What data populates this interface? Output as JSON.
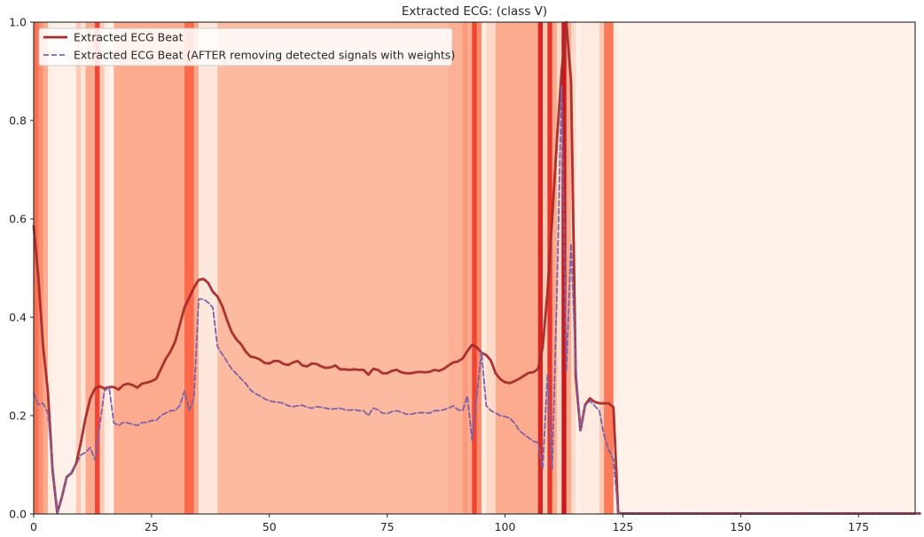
{
  "chart_data": {
    "type": "line",
    "title": "Extracted ECG: (class V)",
    "xlabel": "",
    "ylabel": "",
    "xlim": [
      0,
      187
    ],
    "ylim": [
      0,
      1.0
    ],
    "x_ticks": [
      0,
      25,
      50,
      75,
      100,
      125,
      150,
      175
    ],
    "y_ticks": [
      0.0,
      0.2,
      0.4,
      0.6,
      0.8,
      1.0
    ],
    "x_tick_labels": [
      "0",
      "25",
      "50",
      "75",
      "100",
      "125",
      "150",
      "175"
    ],
    "y_tick_labels": [
      "0.0",
      "0.2",
      "0.4",
      "0.6",
      "0.8",
      "1.0"
    ],
    "grid": false,
    "legend_position": "top-left",
    "series": [
      {
        "name": "Extracted ECG Beat",
        "color": "#a52a2a",
        "style": "solid",
        "values": [
          0.585,
          0.48,
          0.34,
          0.25,
          0.09,
          0.002,
          0.035,
          0.075,
          0.083,
          0.102,
          0.145,
          0.195,
          0.235,
          0.255,
          0.26,
          0.255,
          0.258,
          0.258,
          0.253,
          0.262,
          0.265,
          0.262,
          0.257,
          0.265,
          0.267,
          0.27,
          0.275,
          0.295,
          0.315,
          0.33,
          0.35,
          0.385,
          0.42,
          0.44,
          0.46,
          0.476,
          0.478,
          0.47,
          0.452,
          0.442,
          0.423,
          0.395,
          0.37,
          0.355,
          0.345,
          0.33,
          0.32,
          0.318,
          0.314,
          0.307,
          0.306,
          0.311,
          0.311,
          0.305,
          0.303,
          0.308,
          0.311,
          0.302,
          0.3,
          0.306,
          0.305,
          0.3,
          0.297,
          0.298,
          0.302,
          0.294,
          0.294,
          0.293,
          0.294,
          0.293,
          0.293,
          0.283,
          0.295,
          0.293,
          0.286,
          0.286,
          0.291,
          0.293,
          0.288,
          0.286,
          0.286,
          0.288,
          0.289,
          0.288,
          0.289,
          0.293,
          0.291,
          0.295,
          0.302,
          0.308,
          0.31,
          0.316,
          0.331,
          0.344,
          0.339,
          0.328,
          0.323,
          0.312,
          0.286,
          0.274,
          0.268,
          0.266,
          0.27,
          0.275,
          0.281,
          0.287,
          0.288,
          0.295,
          0.34,
          0.45,
          0.6,
          0.76,
          0.9,
          1.0,
          0.88,
          0.28,
          0.17,
          0.222,
          0.235,
          0.228,
          0.225,
          0.225,
          0.225,
          0.217,
          0.002,
          0.001,
          0.001,
          0.001,
          0.001,
          0.001,
          0.001,
          0.001,
          0.001,
          0.001,
          0.001,
          0.001,
          0.001,
          0.001,
          0.001,
          0.001,
          0.001,
          0.001,
          0.001,
          0.001,
          0.001,
          0.001,
          0.001,
          0.001,
          0.001,
          0.001,
          0.001,
          0.001,
          0.001,
          0.001,
          0.001,
          0.001,
          0.001,
          0.001,
          0.001,
          0.001,
          0.001,
          0.001,
          0.001,
          0.001,
          0.001,
          0.001,
          0.001,
          0.001,
          0.001,
          0.001,
          0.001,
          0.001,
          0.001,
          0.001,
          0.001,
          0.001,
          0.001,
          0.001,
          0.001,
          0.001,
          0.001,
          0.001,
          0.001,
          0.001,
          0.001,
          0.001,
          0.001,
          0.001,
          0.001
        ]
      },
      {
        "name": "Extracted ECG Beat (AFTER removing detected signals with weights)",
        "color": "#7b62a8",
        "style": "dashed",
        "values": [
          0.245,
          0.222,
          0.225,
          0.205,
          0.1,
          0.002,
          0.035,
          0.075,
          0.085,
          0.1,
          0.12,
          0.125,
          0.135,
          0.11,
          0.18,
          0.25,
          0.258,
          0.185,
          0.18,
          0.186,
          0.185,
          0.182,
          0.18,
          0.186,
          0.186,
          0.19,
          0.19,
          0.2,
          0.205,
          0.21,
          0.21,
          0.22,
          0.25,
          0.21,
          0.235,
          0.437,
          0.437,
          0.43,
          0.42,
          0.34,
          0.325,
          0.31,
          0.295,
          0.285,
          0.275,
          0.265,
          0.252,
          0.245,
          0.24,
          0.234,
          0.23,
          0.228,
          0.227,
          0.225,
          0.22,
          0.218,
          0.22,
          0.221,
          0.217,
          0.215,
          0.218,
          0.217,
          0.215,
          0.213,
          0.214,
          0.215,
          0.212,
          0.211,
          0.212,
          0.21,
          0.21,
          0.2,
          0.215,
          0.212,
          0.205,
          0.204,
          0.208,
          0.21,
          0.207,
          0.203,
          0.203,
          0.205,
          0.206,
          0.206,
          0.205,
          0.21,
          0.21,
          0.212,
          0.215,
          0.22,
          0.212,
          0.21,
          0.24,
          0.15,
          0.24,
          0.33,
          0.22,
          0.21,
          0.205,
          0.2,
          0.198,
          0.195,
          0.185,
          0.17,
          0.162,
          0.155,
          0.148,
          0.145,
          0.092,
          0.285,
          0.09,
          0.45,
          0.87,
          0.29,
          0.55,
          0.3,
          0.17,
          0.22,
          0.23,
          0.22,
          0.21,
          0.16,
          0.13,
          0.11,
          0.002,
          0.001,
          0.001,
          0.001,
          0.001,
          0.001,
          0.001,
          0.001,
          0.001,
          0.001,
          0.001,
          0.001,
          0.001,
          0.001,
          0.001,
          0.001,
          0.001,
          0.001,
          0.001,
          0.001,
          0.001,
          0.001,
          0.001,
          0.001,
          0.001,
          0.001,
          0.001,
          0.001,
          0.001,
          0.001,
          0.001,
          0.001,
          0.001,
          0.001,
          0.001,
          0.001,
          0.001,
          0.001,
          0.001,
          0.001,
          0.001,
          0.001,
          0.001,
          0.001,
          0.001,
          0.001,
          0.001,
          0.001,
          0.001,
          0.001,
          0.001,
          0.001,
          0.001,
          0.001,
          0.001,
          0.001,
          0.001,
          0.001,
          0.001,
          0.001,
          0.001,
          0.001,
          0.001,
          0.001,
          0.001
        ]
      }
    ],
    "background_weights": {
      "colormap": "Reds",
      "segments": [
        [
          0,
          1,
          0.48
        ],
        [
          1,
          2,
          0.38
        ],
        [
          2,
          3,
          0.3
        ],
        [
          3,
          4,
          0.05
        ],
        [
          4,
          9,
          0.03
        ],
        [
          9,
          10,
          0.2
        ],
        [
          10,
          11,
          0.1
        ],
        [
          11,
          13,
          0.3
        ],
        [
          13,
          14,
          0.6
        ],
        [
          14,
          15,
          0.2
        ],
        [
          15,
          16,
          0.05
        ],
        [
          16,
          17,
          0.01
        ],
        [
          17,
          32,
          0.3
        ],
        [
          32,
          34,
          0.5
        ],
        [
          34,
          35,
          0.3
        ],
        [
          35,
          39,
          0.08
        ],
        [
          39,
          47,
          0.25
        ],
        [
          47,
          88,
          0.25
        ],
        [
          88,
          91,
          0.28
        ],
        [
          91,
          92,
          0.35
        ],
        [
          92,
          93,
          0.3
        ],
        [
          93,
          94,
          0.6
        ],
        [
          94,
          95,
          0.4
        ],
        [
          95,
          96,
          0.05
        ],
        [
          96,
          98,
          0.15
        ],
        [
          98,
          107,
          0.3
        ],
        [
          107,
          108,
          0.7
        ],
        [
          108,
          109,
          0.2
        ],
        [
          109,
          110,
          0.65
        ],
        [
          110,
          111,
          0.3
        ],
        [
          111,
          112,
          0.15
        ],
        [
          112,
          113,
          0.75
        ],
        [
          113,
          114,
          0.3
        ],
        [
          114,
          115,
          0.15
        ],
        [
          115,
          116,
          0.03
        ],
        [
          116,
          120,
          0.06
        ],
        [
          120,
          121,
          0.2
        ],
        [
          121,
          123,
          0.45
        ],
        [
          123,
          124,
          0.05
        ],
        [
          124,
          187,
          0.02
        ]
      ]
    }
  }
}
